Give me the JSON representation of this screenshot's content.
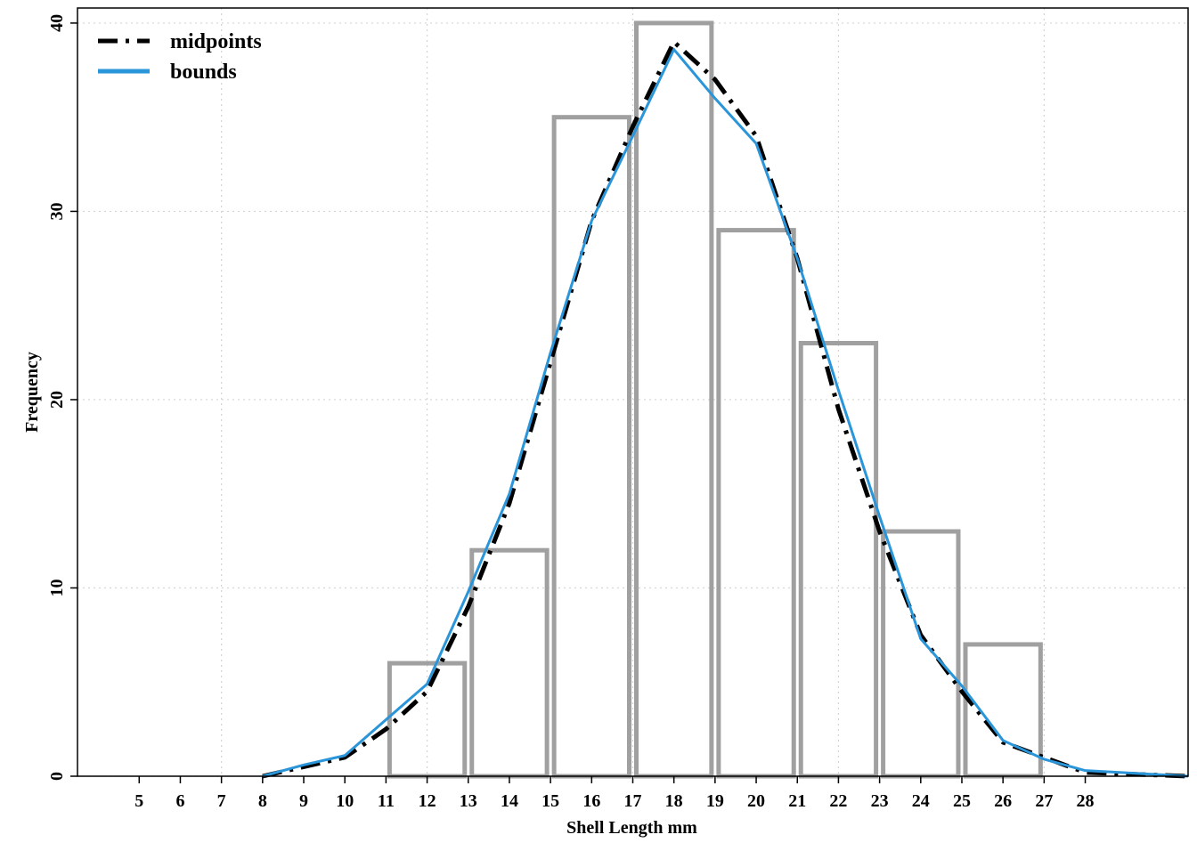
{
  "chart_data": {
    "type": "bar",
    "title": "",
    "xlabel": "Shell Length mm",
    "ylabel": "Frequency",
    "grid": true,
    "legend_position": "top-left",
    "xlim": [
      3.5,
      30.5
    ],
    "ylim": [
      0,
      40.8
    ],
    "x_ticks": [
      "5",
      "6",
      "7",
      "8",
      "9",
      "10",
      "11",
      "12",
      "13",
      "14",
      "15",
      "16",
      "17",
      "18",
      "19",
      "20",
      "21",
      "22",
      "23",
      "24",
      "25",
      "26",
      "27",
      "28"
    ],
    "x_tick_positions": [
      5,
      6,
      7,
      8,
      9,
      10,
      11,
      12,
      13,
      14,
      15,
      16,
      17,
      18,
      19,
      20,
      21,
      22,
      23,
      24,
      25,
      26,
      27,
      28
    ],
    "y_ticks": [
      0,
      10,
      20,
      30,
      40
    ],
    "x_gridlines": [
      7,
      12,
      17,
      22,
      27
    ],
    "bins": [
      {
        "start": 7,
        "end": 9,
        "count": 0
      },
      {
        "start": 9,
        "end": 11,
        "count": 0
      },
      {
        "start": 11,
        "end": 13,
        "count": 6
      },
      {
        "start": 13,
        "end": 15,
        "count": 12
      },
      {
        "start": 15,
        "end": 17,
        "count": 35
      },
      {
        "start": 17,
        "end": 19,
        "count": 40
      },
      {
        "start": 19,
        "end": 21,
        "count": 29
      },
      {
        "start": 21,
        "end": 23,
        "count": 23
      },
      {
        "start": 23,
        "end": 25,
        "count": 13
      },
      {
        "start": 25,
        "end": 27,
        "count": 7
      },
      {
        "start": 27,
        "end": 29,
        "count": 0
      }
    ],
    "series": [
      {
        "name": "midpoints",
        "color": "#000000",
        "style": "dashed",
        "x": [
          8,
          9,
          10,
          11,
          12,
          13,
          14,
          15,
          16,
          17,
          18,
          19,
          20,
          21,
          22,
          23,
          24,
          25,
          26,
          27,
          28,
          30.5
        ],
        "y": [
          0,
          0.5,
          1.0,
          2.5,
          4.5,
          9.0,
          14.5,
          22.0,
          29.5,
          34.5,
          39.0,
          37.0,
          34.0,
          27.5,
          19.5,
          13.0,
          7.5,
          4.5,
          1.8,
          1.0,
          0.2,
          0
        ]
      },
      {
        "name": "bounds",
        "color": "#2b95d9",
        "style": "solid",
        "x": [
          8,
          9,
          10,
          11,
          12,
          13,
          14,
          15,
          16,
          17,
          18,
          19,
          20,
          21,
          22,
          23,
          24,
          25,
          26,
          27,
          28,
          30.5
        ],
        "y": [
          0,
          0.6,
          1.1,
          3.0,
          4.9,
          9.8,
          15.0,
          22.5,
          29.5,
          34.0,
          38.6,
          36.0,
          33.6,
          27.5,
          20.5,
          13.8,
          7.3,
          4.8,
          1.9,
          0.9,
          0.3,
          0
        ]
      }
    ],
    "colors": {
      "bar_outline": "#a0a0a0",
      "grid": "#d3d3d3",
      "axis": "#000000"
    }
  }
}
